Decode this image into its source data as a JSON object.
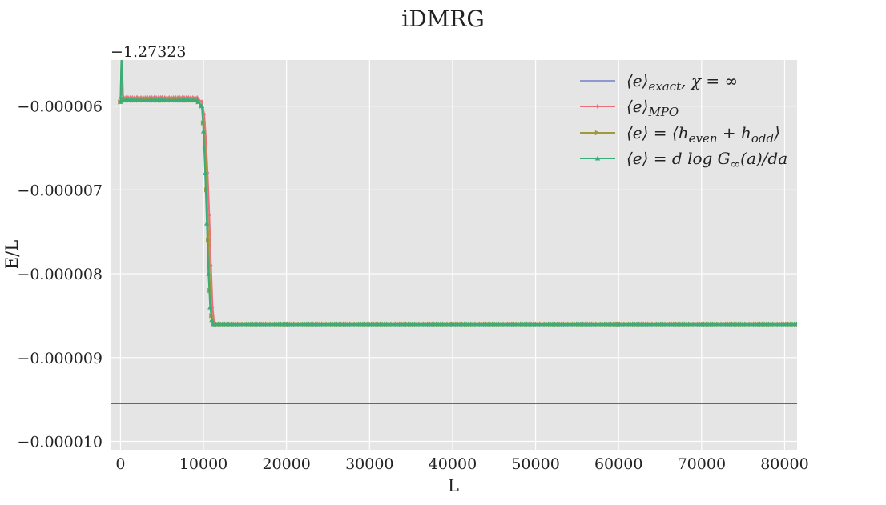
{
  "chart_data": {
    "type": "line",
    "title": "iDMRG",
    "xlabel": "L",
    "ylabel": "E/L",
    "y_offset_label": "−1.27323",
    "xlim": [
      -1200,
      81500
    ],
    "ylim": [
      -1.01e-05,
      -5.45e-06
    ],
    "x_ticks": [
      0,
      10000,
      20000,
      30000,
      40000,
      50000,
      60000,
      70000,
      80000
    ],
    "x_tick_labels": [
      "0",
      "10000",
      "20000",
      "30000",
      "40000",
      "50000",
      "60000",
      "70000",
      "80000"
    ],
    "y_ticks": [
      -6e-06,
      -7e-06,
      -8e-06,
      -9e-06,
      -1e-05
    ],
    "y_tick_labels": [
      "−0.000006",
      "−0.000007",
      "−0.000008",
      "−0.000009",
      "−0.000010"
    ],
    "grid": true,
    "legend_position": "top-right",
    "series": [
      {
        "name": "⟨e⟩exact, χ = ∞",
        "color": "#3b4cc0",
        "marker": "none",
        "x": [
          -1200,
          81500
        ],
        "y": [
          -9.55e-06,
          -9.55e-06
        ]
      },
      {
        "name": "⟨e⟩MPO",
        "color": "#e8707b",
        "marker": "diamond",
        "x": [
          0,
          150,
          300,
          2000,
          5000,
          8000,
          9400,
          9800,
          10100,
          10300,
          10500,
          10700,
          10900,
          11100,
          11300,
          11500,
          12000,
          20000,
          40000,
          60000,
          81500
        ],
        "y": [
          -5.9e-06,
          -5.8e-06,
          -5.9e-06,
          -5.9e-06,
          -5.9e-06,
          -5.9e-06,
          -5.92e-06,
          -5.95e-06,
          -6.1e-06,
          -6.4e-06,
          -6.8e-06,
          -7.3e-06,
          -7.9e-06,
          -8.4e-06,
          -8.6e-06,
          -8.6e-06,
          -8.6e-06,
          -8.6e-06,
          -8.6e-06,
          -8.6e-06,
          -8.6e-06
        ]
      },
      {
        "name": "⟨e⟩ = ⟨heven + hodd⟩",
        "color": "#9e9a3a",
        "marker": "triangle-right",
        "x": [
          0,
          150,
          300,
          2000,
          5000,
          8000,
          9400,
          9800,
          10000,
          10200,
          10400,
          10600,
          10800,
          11000,
          11200,
          11500,
          12000,
          20000,
          40000,
          60000,
          81500
        ],
        "y": [
          -5.95e-06,
          -5.2e-06,
          -5.93e-06,
          -5.93e-06,
          -5.93e-06,
          -5.93e-06,
          -5.95e-06,
          -6e-06,
          -6.2e-06,
          -6.5e-06,
          -7e-06,
          -7.6e-06,
          -8.2e-06,
          -8.5e-06,
          -8.6e-06,
          -8.6e-06,
          -8.6e-06,
          -8.6e-06,
          -8.6e-06,
          -8.6e-06,
          -8.6e-06
        ]
      },
      {
        "name": "⟨e⟩ = d log G∞(a)/da",
        "color": "#3aad7a",
        "marker": "triangle-up",
        "x": [
          0,
          150,
          300,
          2000,
          5000,
          8000,
          9400,
          9800,
          10000,
          10200,
          10400,
          10600,
          10800,
          11000,
          11200,
          11500,
          12000,
          20000,
          40000,
          60000,
          81500
        ],
        "y": [
          -5.95e-06,
          -5.2e-06,
          -5.93e-06,
          -5.93e-06,
          -5.93e-06,
          -5.93e-06,
          -5.95e-06,
          -6e-06,
          -6.3e-06,
          -6.8e-06,
          -7.4e-06,
          -8e-06,
          -8.4e-06,
          -8.55e-06,
          -8.6e-06,
          -8.6e-06,
          -8.6e-06,
          -8.6e-06,
          -8.6e-06,
          -8.6e-06,
          -8.6e-06
        ]
      }
    ],
    "legend_entries": [
      {
        "base": "⟨e⟩",
        "sub": "exact",
        "tail": ", χ = ∞"
      },
      {
        "base": "⟨e⟩",
        "sub": "MPO",
        "tail": ""
      },
      {
        "base": "⟨e⟩ = ⟨h",
        "sub": "even",
        "mid": " + h",
        "sub2": "odd",
        "tail": "⟩"
      },
      {
        "base": "⟨e⟩ = d log G",
        "sub": "∞",
        "tail": "(a)/da"
      }
    ]
  }
}
